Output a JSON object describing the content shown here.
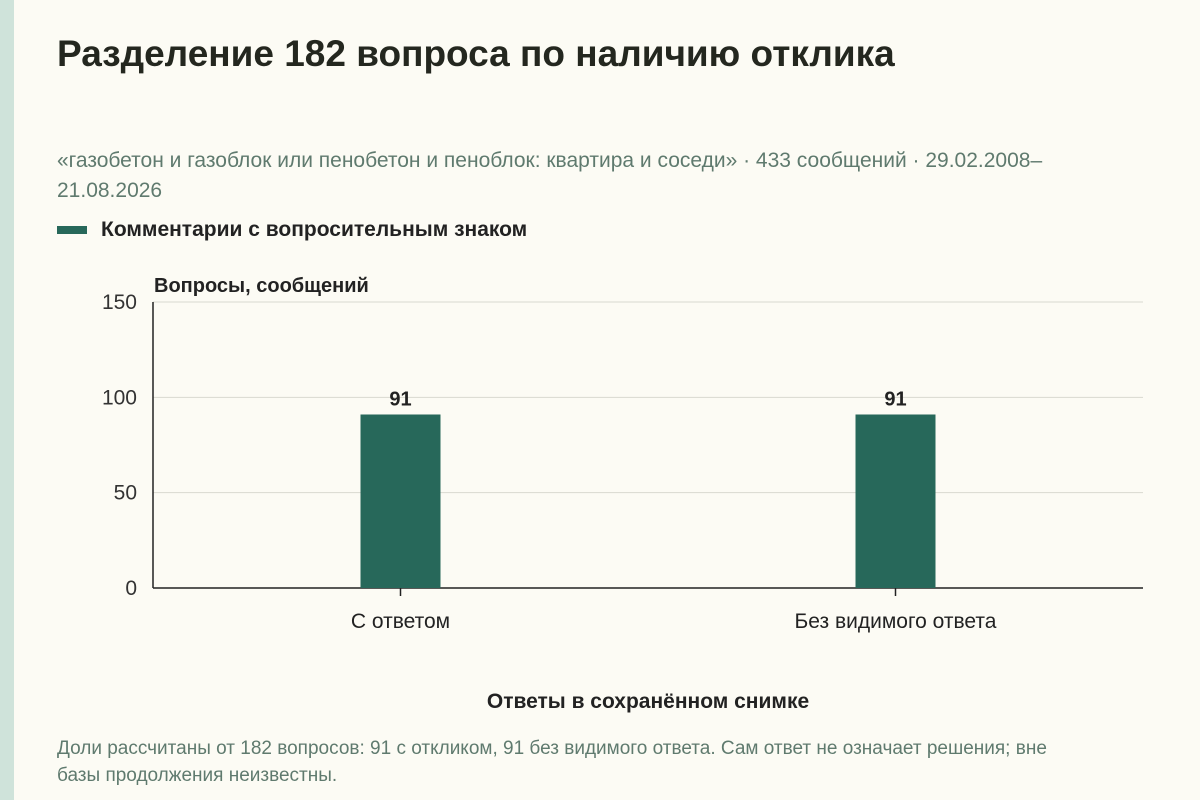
{
  "title": "Разделение 182 вопроса по наличию отклика",
  "subtitle": "«газобетон и газоблок или пенобетон и пеноблок: квартира и соседи» · 433 сообщений · 29.02.2008–21.08.2026",
  "note": "Доли рассчитаны от 182 вопросов: 91 с откликом, 91 без видимого ответа. Сам ответ не означает решения; вне базы продолжения неизвестны.",
  "colors": {
    "bar": "#27685a",
    "grid": "#d9d9d0",
    "axis": "#222222",
    "accent_strip": "#cfe3da",
    "subtitle": "#5f7a6e"
  },
  "chart_data": {
    "type": "bar",
    "title": "Разделение 182 вопроса по наличию отклика",
    "categories": [
      "С ответом",
      "Без видимого ответа"
    ],
    "series": [
      {
        "name": "Комментарии с вопросительным знаком",
        "values": [
          91,
          91
        ]
      }
    ],
    "data_labels": [
      "91",
      "91"
    ],
    "xlabel": "Ответы в сохранённом снимке",
    "ylabel": "Вопросы, сообщений",
    "ylim": [
      0,
      150
    ],
    "yticks": [
      "0",
      "50",
      "100",
      "150"
    ],
    "grid": true,
    "legend_position": "top-left"
  }
}
